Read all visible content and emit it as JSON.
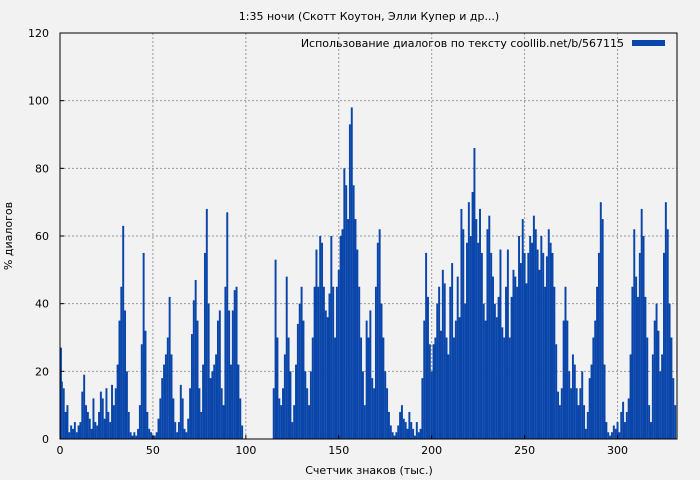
{
  "chart_data": {
    "type": "bar",
    "title": "1:35 ночи (Скотт Коутон, Элли Купер и др...)",
    "xlabel": "Счетчик знаков (тыс.)",
    "ylabel": "% диалогов",
    "xlim": [
      0,
      332
    ],
    "ylim": [
      0,
      120
    ],
    "x_ticks": [
      0,
      50,
      100,
      150,
      200,
      250,
      300
    ],
    "y_ticks": [
      0,
      20,
      40,
      60,
      80,
      100,
      120
    ],
    "grid": true,
    "legend_position": "top-right",
    "bar_color": "#0a46aa",
    "series": [
      {
        "name": "Использование диалогов по тексту coollib.net/b/567115",
        "bar_width": 0.5,
        "points": [
          [
            0.5,
            27
          ],
          [
            1,
            17
          ],
          [
            2,
            15
          ],
          [
            3,
            8
          ],
          [
            4,
            10
          ],
          [
            5,
            2
          ],
          [
            6,
            4
          ],
          [
            7,
            3
          ],
          [
            8,
            5
          ],
          [
            9,
            2
          ],
          [
            10,
            4
          ],
          [
            11,
            5
          ],
          [
            12,
            14
          ],
          [
            13,
            19
          ],
          [
            14,
            10
          ],
          [
            15,
            8
          ],
          [
            16,
            6
          ],
          [
            17,
            3
          ],
          [
            18,
            12
          ],
          [
            19,
            5
          ],
          [
            20,
            4
          ],
          [
            21,
            8
          ],
          [
            22,
            14
          ],
          [
            23,
            12
          ],
          [
            24,
            6
          ],
          [
            25,
            15
          ],
          [
            26,
            8
          ],
          [
            27,
            5
          ],
          [
            28,
            16
          ],
          [
            29,
            10
          ],
          [
            30,
            15
          ],
          [
            31,
            22
          ],
          [
            32,
            35
          ],
          [
            33,
            45
          ],
          [
            34,
            63
          ],
          [
            35,
            38
          ],
          [
            36,
            20
          ],
          [
            37,
            8
          ],
          [
            38,
            2
          ],
          [
            39,
            1
          ],
          [
            40,
            2
          ],
          [
            41,
            1
          ],
          [
            42,
            3
          ],
          [
            43,
            10
          ],
          [
            44,
            28
          ],
          [
            45,
            55
          ],
          [
            46,
            32
          ],
          [
            47,
            8
          ],
          [
            48,
            3
          ],
          [
            49,
            2
          ],
          [
            50,
            1
          ],
          [
            51,
            1
          ],
          [
            52,
            2
          ],
          [
            53,
            6
          ],
          [
            54,
            12
          ],
          [
            55,
            18
          ],
          [
            56,
            22
          ],
          [
            57,
            25
          ],
          [
            58,
            30
          ],
          [
            59,
            42
          ],
          [
            60,
            25
          ],
          [
            61,
            12
          ],
          [
            62,
            5
          ],
          [
            63,
            2
          ],
          [
            64,
            5
          ],
          [
            65,
            16
          ],
          [
            66,
            12
          ],
          [
            67,
            3
          ],
          [
            68,
            2
          ],
          [
            69,
            6
          ],
          [
            70,
            15
          ],
          [
            71,
            31
          ],
          [
            72,
            41
          ],
          [
            73,
            47
          ],
          [
            74,
            35
          ],
          [
            75,
            15
          ],
          [
            76,
            8
          ],
          [
            77,
            22
          ],
          [
            78,
            55
          ],
          [
            79,
            68
          ],
          [
            80,
            40
          ],
          [
            81,
            18
          ],
          [
            82,
            20
          ],
          [
            83,
            22
          ],
          [
            84,
            25
          ],
          [
            85,
            35
          ],
          [
            86,
            38
          ],
          [
            87,
            15
          ],
          [
            88,
            10
          ],
          [
            89,
            45
          ],
          [
            90,
            67
          ],
          [
            91,
            38
          ],
          [
            92,
            22
          ],
          [
            93,
            38
          ],
          [
            94,
            44
          ],
          [
            95,
            45
          ],
          [
            96,
            22
          ],
          [
            97,
            12
          ],
          [
            98,
            4
          ],
          [
            115,
            15
          ],
          [
            116,
            53
          ],
          [
            117,
            30
          ],
          [
            118,
            12
          ],
          [
            119,
            10
          ],
          [
            120,
            15
          ],
          [
            121,
            25
          ],
          [
            122,
            48
          ],
          [
            123,
            30
          ],
          [
            124,
            20
          ],
          [
            125,
            5
          ],
          [
            126,
            10
          ],
          [
            127,
            22
          ],
          [
            128,
            34
          ],
          [
            129,
            40
          ],
          [
            130,
            45
          ],
          [
            131,
            35
          ],
          [
            132,
            20
          ],
          [
            133,
            15
          ],
          [
            134,
            10
          ],
          [
            135,
            20
          ],
          [
            136,
            30
          ],
          [
            137,
            45
          ],
          [
            138,
            56
          ],
          [
            139,
            45
          ],
          [
            140,
            60
          ],
          [
            141,
            58
          ],
          [
            142,
            45
          ],
          [
            143,
            38
          ],
          [
            144,
            36
          ],
          [
            145,
            43
          ],
          [
            146,
            60
          ],
          [
            147,
            45
          ],
          [
            148,
            30
          ],
          [
            149,
            45
          ],
          [
            150,
            50
          ],
          [
            151,
            60
          ],
          [
            152,
            62
          ],
          [
            153,
            80
          ],
          [
            154,
            75
          ],
          [
            155,
            65
          ],
          [
            156,
            93
          ],
          [
            157,
            98
          ],
          [
            158,
            75
          ],
          [
            159,
            65
          ],
          [
            160,
            56
          ],
          [
            161,
            45
          ],
          [
            162,
            30
          ],
          [
            163,
            20
          ],
          [
            164,
            10
          ],
          [
            165,
            35
          ],
          [
            166,
            30
          ],
          [
            167,
            38
          ],
          [
            168,
            18
          ],
          [
            169,
            15
          ],
          [
            170,
            45
          ],
          [
            171,
            58
          ],
          [
            172,
            62
          ],
          [
            173,
            40
          ],
          [
            174,
            30
          ],
          [
            175,
            20
          ],
          [
            176,
            15
          ],
          [
            177,
            8
          ],
          [
            178,
            4
          ],
          [
            179,
            2
          ],
          [
            180,
            1
          ],
          [
            181,
            2
          ],
          [
            182,
            4
          ],
          [
            183,
            8
          ],
          [
            184,
            10
          ],
          [
            185,
            6
          ],
          [
            186,
            5
          ],
          [
            187,
            3
          ],
          [
            188,
            8
          ],
          [
            189,
            5
          ],
          [
            190,
            3
          ],
          [
            191,
            1
          ],
          [
            192,
            5
          ],
          [
            193,
            2
          ],
          [
            194,
            3
          ],
          [
            195,
            18
          ],
          [
            196,
            35
          ],
          [
            197,
            55
          ],
          [
            198,
            42
          ],
          [
            199,
            28
          ],
          [
            200,
            20
          ],
          [
            201,
            28
          ],
          [
            202,
            30
          ],
          [
            203,
            40
          ],
          [
            204,
            45
          ],
          [
            205,
            32
          ],
          [
            206,
            50
          ],
          [
            207,
            46
          ],
          [
            208,
            30
          ],
          [
            209,
            25
          ],
          [
            210,
            45
          ],
          [
            211,
            52
          ],
          [
            212,
            30
          ],
          [
            213,
            35
          ],
          [
            214,
            48
          ],
          [
            215,
            36
          ],
          [
            216,
            68
          ],
          [
            217,
            62
          ],
          [
            218,
            40
          ],
          [
            219,
            58
          ],
          [
            220,
            70
          ],
          [
            221,
            60
          ],
          [
            222,
            73
          ],
          [
            223,
            86
          ],
          [
            224,
            65
          ],
          [
            225,
            58
          ],
          [
            226,
            68
          ],
          [
            227,
            55
          ],
          [
            228,
            40
          ],
          [
            229,
            35
          ],
          [
            230,
            62
          ],
          [
            231,
            66
          ],
          [
            232,
            55
          ],
          [
            233,
            48
          ],
          [
            234,
            40
          ],
          [
            235,
            36
          ],
          [
            236,
            42
          ],
          [
            237,
            56
          ],
          [
            238,
            33
          ],
          [
            239,
            30
          ],
          [
            240,
            45
          ],
          [
            241,
            56
          ],
          [
            242,
            30
          ],
          [
            243,
            42
          ],
          [
            244,
            50
          ],
          [
            245,
            48
          ],
          [
            246,
            45
          ],
          [
            247,
            60
          ],
          [
            248,
            52
          ],
          [
            249,
            65
          ],
          [
            250,
            55
          ],
          [
            251,
            46
          ],
          [
            252,
            55
          ],
          [
            253,
            60
          ],
          [
            254,
            58
          ],
          [
            255,
            66
          ],
          [
            256,
            62
          ],
          [
            257,
            56
          ],
          [
            258,
            50
          ],
          [
            259,
            60
          ],
          [
            260,
            55
          ],
          [
            261,
            45
          ],
          [
            262,
            54
          ],
          [
            263,
            62
          ],
          [
            264,
            58
          ],
          [
            265,
            55
          ],
          [
            266,
            45
          ],
          [
            267,
            28
          ],
          [
            268,
            14
          ],
          [
            269,
            10
          ],
          [
            270,
            15
          ],
          [
            271,
            35
          ],
          [
            272,
            45
          ],
          [
            273,
            35
          ],
          [
            274,
            20
          ],
          [
            275,
            15
          ],
          [
            276,
            25
          ],
          [
            277,
            22
          ],
          [
            278,
            15
          ],
          [
            279,
            10
          ],
          [
            280,
            15
          ],
          [
            281,
            20
          ],
          [
            282,
            10
          ],
          [
            283,
            3
          ],
          [
            284,
            8
          ],
          [
            285,
            18
          ],
          [
            286,
            22
          ],
          [
            287,
            30
          ],
          [
            288,
            35
          ],
          [
            289,
            45
          ],
          [
            290,
            55
          ],
          [
            291,
            70
          ],
          [
            292,
            65
          ],
          [
            293,
            22
          ],
          [
            294,
            5
          ],
          [
            295,
            2
          ],
          [
            296,
            1
          ],
          [
            297,
            2
          ],
          [
            298,
            4
          ],
          [
            299,
            3
          ],
          [
            300,
            5
          ],
          [
            301,
            2
          ],
          [
            302,
            8
          ],
          [
            303,
            11
          ],
          [
            304,
            5
          ],
          [
            305,
            8
          ],
          [
            306,
            12
          ],
          [
            307,
            25
          ],
          [
            308,
            45
          ],
          [
            309,
            62
          ],
          [
            310,
            48
          ],
          [
            311,
            42
          ],
          [
            312,
            55
          ],
          [
            313,
            68
          ],
          [
            314,
            60
          ],
          [
            315,
            42
          ],
          [
            316,
            30
          ],
          [
            317,
            10
          ],
          [
            318,
            5
          ],
          [
            319,
            25
          ],
          [
            320,
            35
          ],
          [
            321,
            40
          ],
          [
            322,
            32
          ],
          [
            323,
            20
          ],
          [
            324,
            25
          ],
          [
            325,
            55
          ],
          [
            326,
            70
          ],
          [
            327,
            62
          ],
          [
            328,
            40
          ],
          [
            329,
            30
          ],
          [
            330,
            18
          ],
          [
            331,
            10
          ]
        ]
      }
    ]
  }
}
